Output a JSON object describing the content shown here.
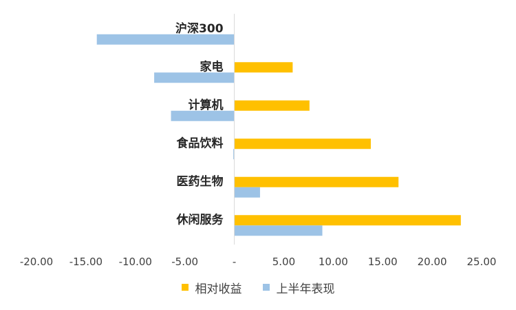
{
  "chart_data": {
    "type": "bar",
    "orientation": "horizontal",
    "categories": [
      "沪深300",
      "家电",
      "计算机",
      "食品饮料",
      "医药生物",
      "休闲服务"
    ],
    "series": [
      {
        "name": "相对收益",
        "color": "#FFC000",
        "values": [
          0,
          5.9,
          7.6,
          13.8,
          16.6,
          22.9
        ]
      },
      {
        "name": "上半年表现",
        "color": "#9DC3E6",
        "values": [
          -13.9,
          -8.1,
          -6.4,
          -0.1,
          2.6,
          8.9
        ]
      }
    ],
    "xlim": [
      -20,
      25
    ],
    "xticks": [
      "-20.00",
      "-15.00",
      "-10.00",
      "-5.00",
      "-",
      "5.00",
      "10.00",
      "15.00",
      "20.00",
      "25.00"
    ],
    "grid": false,
    "legend": "bottom"
  }
}
